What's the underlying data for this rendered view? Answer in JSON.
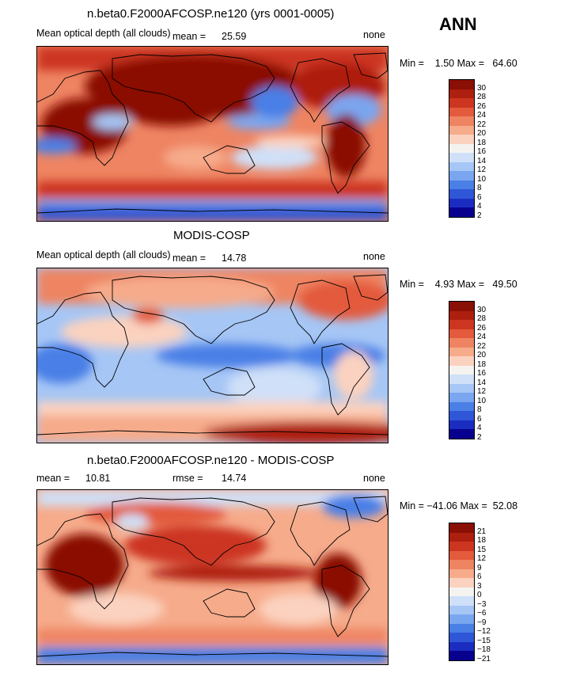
{
  "season": "ANN",
  "colors": {
    "pos_scale": [
      "#08008e",
      "#1b2dc0",
      "#2f56d6",
      "#4a7fe6",
      "#7aa6f0",
      "#a6c6f5",
      "#cfe0f8",
      "#f5f3f0",
      "#fbd2bf",
      "#f6ab8b",
      "#ee8462",
      "#e35a3c",
      "#cc3620",
      "#ad1f0e",
      "#8a0f04"
    ]
  },
  "panels": [
    {
      "title": "n.beta0.F2000AFCOSP.ne120 (yrs 0001-0005)",
      "left_label": "Mean optical depth (all clouds)",
      "mean_label": "mean =",
      "mean_value": "25.59",
      "right_label": "none",
      "min_max": "Min =    1.50 Max =   64.60",
      "ticks": [
        "30",
        "28",
        "26",
        "24",
        "22",
        "20",
        "18",
        "16",
        "14",
        "12",
        "10",
        "8",
        "6",
        "4",
        "2"
      ]
    },
    {
      "title": "MODIS-COSP",
      "left_label": "Mean optical depth (all clouds)",
      "mean_label": "mean =",
      "mean_value": "14.78",
      "right_label": "none",
      "min_max": "Min =    4.93 Max =   49.50",
      "ticks": [
        "30",
        "28",
        "26",
        "24",
        "22",
        "20",
        "18",
        "16",
        "14",
        "12",
        "10",
        "8",
        "6",
        "4",
        "2"
      ]
    },
    {
      "title": "n.beta0.F2000AFCOSP.ne120 - MODIS-COSP",
      "mean_label": "mean =",
      "mean_value": "10.81",
      "rmse_label": "rmse =",
      "rmse_value": "14.74",
      "right_label": "none",
      "min_max": "Min = −41.06 Max =  52.08",
      "ticks": [
        "21",
        "18",
        "15",
        "12",
        "9",
        "6",
        "3",
        "0",
        "−3",
        "−6",
        "−9",
        "−12",
        "−15",
        "−18",
        "−21"
      ]
    }
  ]
}
